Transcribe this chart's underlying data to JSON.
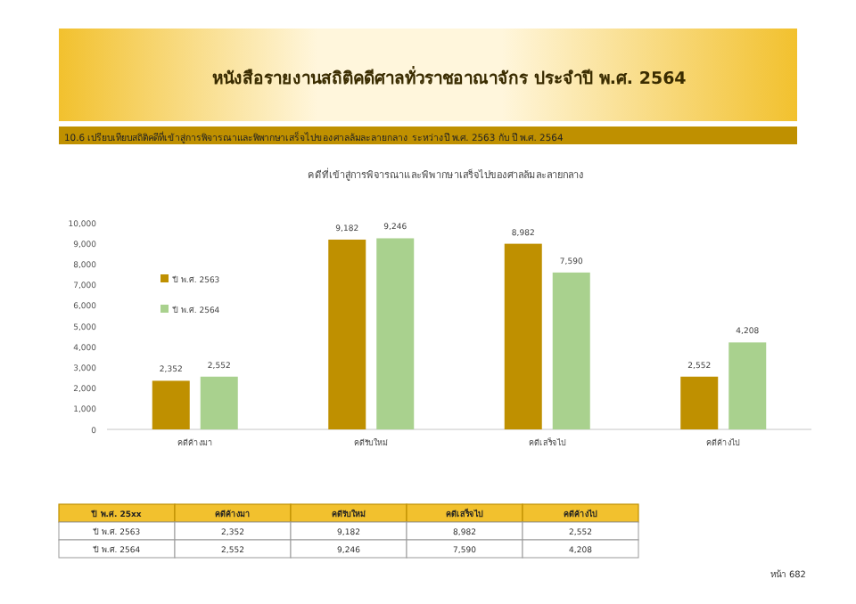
{
  "chart_data": {
    "type": "bar",
    "title": "หนังสือรายงานสถิติคดีศาลทั่วราชอาณาจักร ประจำปี พ.ศ. 2564",
    "subtitle": "10.6 เปรียบเทียบสถิติคดีที่เข้าสู่การพิจารณาและพิพากษาเสร็จไปของศาลล้มละลายกลาง ระหว่างปี พ.ศ. 2563 กับ ปี พ.ศ. 2564",
    "annotations": [
      "คดีที่เข้าสู่การพิจารณาและพิพากษาเสร็จไปของศาลล้มละลายกลาง",
      "ปี พ.ศ. 25xx",
      "หน้า 682"
    ],
    "categories": [
      "คดีค้างมา",
      "คดีรับใหม่",
      "คดีเสร็จไป",
      "คดีค้างไป"
    ],
    "series": [
      {
        "name": "ปี พ.ศ. 2563",
        "color": "#bf9000",
        "values": [
          2352,
          9182,
          8982,
          2552
        ],
        "value_labels": [
          "2,352",
          "9,182",
          "8,982",
          "2,552"
        ]
      },
      {
        "name": "ปี พ.ศ. 2564",
        "color": "#a9d18e",
        "values": [
          2552,
          9246,
          7590,
          4208
        ],
        "value_labels": [
          "2,552",
          "9,246",
          "7,590",
          "4,208"
        ]
      }
    ],
    "ylim": [
      0,
      10000
    ],
    "yticks": [
      {
        "value": 0,
        "label": "0"
      },
      {
        "value": 1000,
        "label": "1,000"
      },
      {
        "value": 2000,
        "label": "2,000"
      },
      {
        "value": 3000,
        "label": "3,000"
      },
      {
        "value": 4000,
        "label": "4,000"
      },
      {
        "value": 5000,
        "label": "5,000"
      },
      {
        "value": 6000,
        "label": "6,000"
      },
      {
        "value": 7000,
        "label": "7,000"
      },
      {
        "value": 8000,
        "label": "8,000"
      },
      {
        "value": 9000,
        "label": "9,000"
      },
      {
        "value": 10000,
        "label": "10,000"
      }
    ],
    "legend": "top left",
    "grid": false
  }
}
